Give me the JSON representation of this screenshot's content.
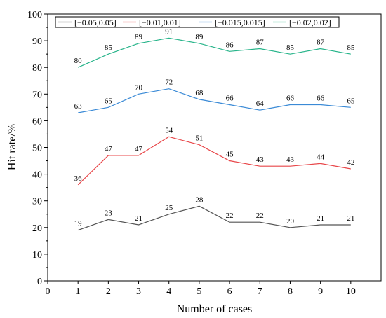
{
  "chart_data": {
    "type": "line",
    "xlabel": "Number of cases",
    "ylabel": "Hit rate/%",
    "xlim": [
      0,
      11
    ],
    "ylim": [
      0,
      100
    ],
    "x_ticks": [
      "0",
      "1",
      "2",
      "3",
      "4",
      "5",
      "6",
      "7",
      "8",
      "9",
      "10"
    ],
    "y_ticks": [
      "0",
      "10",
      "20",
      "30",
      "40",
      "50",
      "60",
      "70",
      "80",
      "90",
      "100"
    ],
    "grid": false,
    "legend_position": "top",
    "x": [
      1,
      2,
      3,
      4,
      5,
      6,
      7,
      8,
      9,
      10
    ],
    "series": [
      {
        "name": "[−0.05,0.05]",
        "color": "#555555",
        "values": [
          19,
          23,
          21,
          25,
          28,
          22,
          22,
          20,
          21,
          21
        ]
      },
      {
        "name": "[−0.01,0.01]",
        "color": "#e8474a",
        "values": [
          36,
          47,
          47,
          54,
          51,
          45,
          43,
          43,
          44,
          42
        ]
      },
      {
        "name": "[−0.015,0.015]",
        "color": "#3a8ad6",
        "values": [
          63,
          65,
          70,
          72,
          68,
          66,
          64,
          66,
          66,
          65
        ]
      },
      {
        "name": "[−0.02,0.02]",
        "color": "#27b48a",
        "values": [
          80,
          85,
          89,
          91,
          89,
          86,
          87,
          85,
          87,
          85
        ]
      }
    ]
  }
}
